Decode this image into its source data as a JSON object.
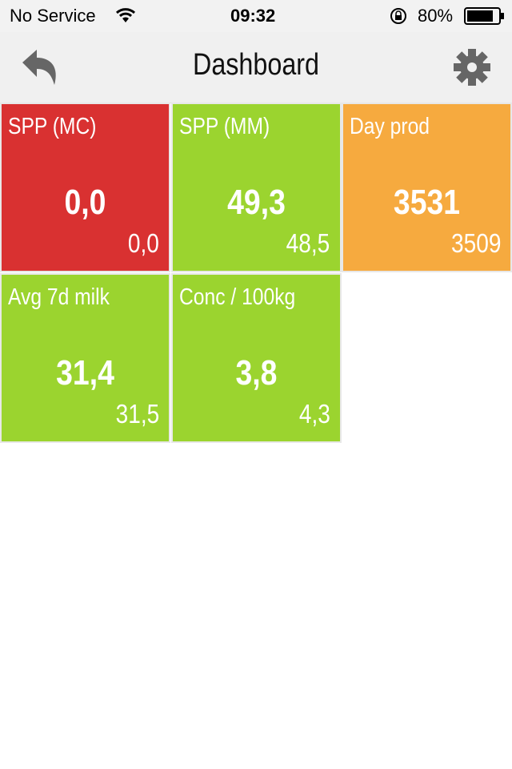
{
  "status": {
    "carrier": "No Service",
    "time": "09:32",
    "battery": "80%"
  },
  "header": {
    "title": "Dashboard"
  },
  "tiles": [
    {
      "label": "SPP (MC)",
      "value": "0,0",
      "previous": "0,0",
      "color": "#d93131"
    },
    {
      "label": "SPP (MM)",
      "value": "49,3",
      "previous": "48,5",
      "color": "#9bd42f"
    },
    {
      "label": "Day prod",
      "value": "3531",
      "previous": "3509",
      "color": "#f6aa3f"
    },
    {
      "label": "Avg 7d milk",
      "value": "31,4",
      "previous": "31,5",
      "color": "#9bd42f"
    },
    {
      "label": "Conc / 100kg",
      "value": "3,8",
      "previous": "4,3",
      "color": "#9bd42f"
    }
  ]
}
